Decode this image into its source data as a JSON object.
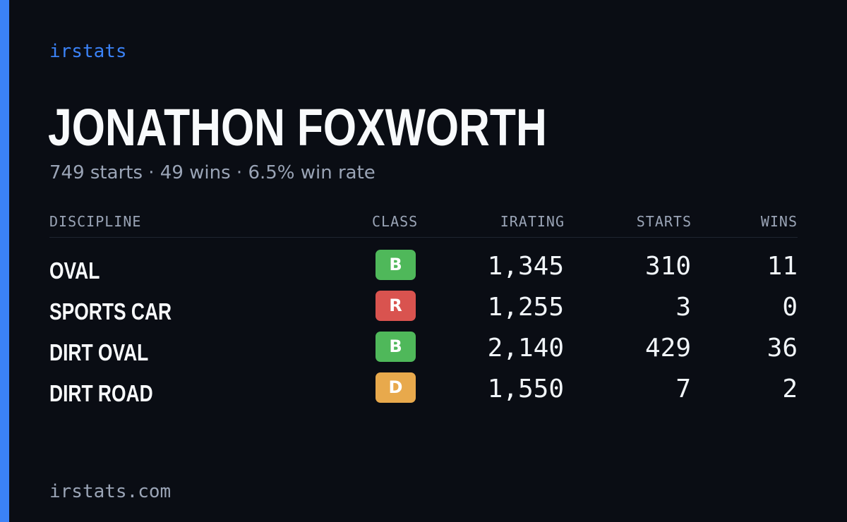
{
  "brand": "irstats",
  "driver": {
    "name": "JONATHON FOXWORTH",
    "summary": "749 starts · 49 wins · 6.5% win rate"
  },
  "table": {
    "headers": {
      "discipline": "DISCIPLINE",
      "class": "CLASS",
      "irating": "IRATING",
      "starts": "STARTS",
      "wins": "WINS"
    },
    "rows": [
      {
        "discipline": "OVAL",
        "class": "B",
        "class_color": "#4fb85a",
        "irating": "1,345",
        "starts": "310",
        "wins": "11"
      },
      {
        "discipline": "SPORTS CAR",
        "class": "R",
        "class_color": "#d9534f",
        "irating": "1,255",
        "starts": "3",
        "wins": "0"
      },
      {
        "discipline": "DIRT OVAL",
        "class": "B",
        "class_color": "#4fb85a",
        "irating": "2,140",
        "starts": "429",
        "wins": "36"
      },
      {
        "discipline": "DIRT ROAD",
        "class": "D",
        "class_color": "#e8a94c",
        "irating": "1,550",
        "starts": "7",
        "wins": "2"
      }
    ]
  },
  "footer": "irstats.com",
  "colors": {
    "accent": "#3b82f6",
    "background": "#0a0d14"
  }
}
